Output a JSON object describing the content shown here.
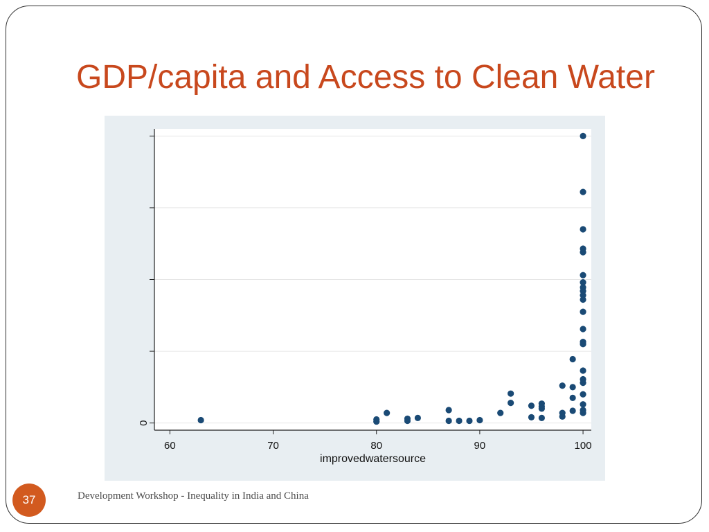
{
  "slide": {
    "title": "GDP/capita and Access to Clean Water",
    "slide_number": "37",
    "footer": "Development Workshop - Inequality in India and China"
  },
  "colors": {
    "title": "#c8481d",
    "badge": "#d25a1f",
    "chart_panel": "#e8eef2",
    "plot_area": "#ffffff",
    "grid": "#e6e6e6",
    "axis": "#222222",
    "marker": "#1a4a75"
  },
  "chart_data": {
    "type": "scatter",
    "title": "",
    "xlabel": "improvedwatersource",
    "ylabel": "",
    "xlim": [
      58.5,
      100.8
    ],
    "ylim": [
      -0.1,
      4.1
    ],
    "x_ticks": [
      60,
      70,
      80,
      90,
      100
    ],
    "x_tick_labels": [
      "60",
      "70",
      "80",
      "90",
      "100"
    ],
    "y_ticks": [
      0,
      1,
      2,
      3,
      4
    ],
    "y_tick_labels": [
      "0",
      "",
      "",
      "",
      ""
    ],
    "grid": true,
    "legend": "none",
    "series": [
      {
        "marker": "circle",
        "points": [
          [
            63,
            0.04
          ],
          [
            80,
            0.05
          ],
          [
            80,
            0.02
          ],
          [
            81,
            0.14
          ],
          [
            83,
            0.06
          ],
          [
            83,
            0.03
          ],
          [
            84,
            0.07
          ],
          [
            87,
            0.18
          ],
          [
            87,
            0.03
          ],
          [
            88,
            0.03
          ],
          [
            89,
            0.03
          ],
          [
            90,
            0.04
          ],
          [
            92,
            0.14
          ],
          [
            93,
            0.41
          ],
          [
            93,
            0.28
          ],
          [
            95,
            0.24
          ],
          [
            95,
            0.08
          ],
          [
            96,
            0.27
          ],
          [
            96,
            0.23
          ],
          [
            96,
            0.2
          ],
          [
            96,
            0.07
          ],
          [
            98,
            0.52
          ],
          [
            98,
            0.14
          ],
          [
            98,
            0.09
          ],
          [
            99,
            0.89
          ],
          [
            99,
            0.5
          ],
          [
            99,
            0.35
          ],
          [
            99,
            0.17
          ],
          [
            100,
            4.0
          ],
          [
            100,
            3.22
          ],
          [
            100,
            2.7
          ],
          [
            100,
            2.43
          ],
          [
            100,
            2.38
          ],
          [
            100,
            2.06
          ],
          [
            100,
            1.96
          ],
          [
            100,
            1.89
          ],
          [
            100,
            1.84
          ],
          [
            100,
            1.78
          ],
          [
            100,
            1.72
          ],
          [
            100,
            1.55
          ],
          [
            100,
            1.31
          ],
          [
            100,
            1.13
          ],
          [
            100,
            1.1
          ],
          [
            100,
            0.73
          ],
          [
            100,
            0.61
          ],
          [
            100,
            0.56
          ],
          [
            100,
            0.4
          ],
          [
            100,
            0.26
          ],
          [
            100,
            0.18
          ],
          [
            100,
            0.14
          ]
        ]
      }
    ]
  }
}
